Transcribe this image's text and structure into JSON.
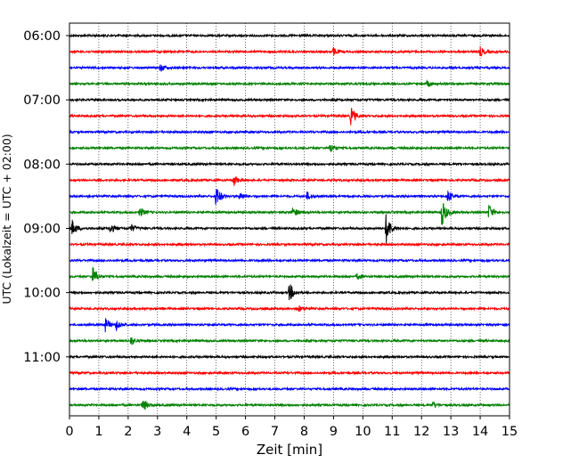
{
  "chart_data": {
    "type": "line",
    "title": "",
    "xlabel": "Zeit  [min]",
    "ylabel": "UTC (Lokalzeit = UTC + 02:00)",
    "xlim": [
      0,
      15
    ],
    "x_ticks": [
      0,
      1,
      2,
      3,
      4,
      5,
      6,
      7,
      8,
      9,
      10,
      11,
      12,
      13,
      14,
      15
    ],
    "x_tick_labels": [
      "0",
      "1",
      "2",
      "3",
      "4",
      "5",
      "6",
      "7",
      "8",
      "9",
      "10",
      "11",
      "12",
      "13",
      "14",
      "15"
    ],
    "y_tick_labels": [
      "06:00",
      "07:00",
      "08:00",
      "09:00",
      "10:00",
      "11:00"
    ],
    "y_tick_rows": [
      0,
      4,
      8,
      12,
      16,
      20
    ],
    "row_interval_minutes": 15,
    "trace_colors": [
      "#000000",
      "#ff0000",
      "#0000ff",
      "#008000"
    ],
    "grid": "vertical dotted lines at each minute",
    "series": [
      {
        "start": "06:00",
        "events": []
      },
      {
        "start": "06:15",
        "events": [
          {
            "t": 9.0,
            "amp": 0.25
          },
          {
            "t": 14.0,
            "amp": 0.3
          }
        ]
      },
      {
        "start": "06:30",
        "events": [
          {
            "t": 3.1,
            "amp": 0.25
          }
        ]
      },
      {
        "start": "06:45",
        "events": [
          {
            "t": 12.2,
            "amp": 0.2
          }
        ]
      },
      {
        "start": "07:00",
        "events": []
      },
      {
        "start": "07:15",
        "events": [
          {
            "t": 9.6,
            "amp": 0.6
          }
        ]
      },
      {
        "start": "07:30",
        "events": []
      },
      {
        "start": "07:45",
        "events": [
          {
            "t": 8.9,
            "amp": 0.3
          }
        ]
      },
      {
        "start": "08:00",
        "events": []
      },
      {
        "start": "08:15",
        "events": [
          {
            "t": 5.6,
            "amp": 0.35
          }
        ]
      },
      {
        "start": "08:30",
        "events": [
          {
            "t": 5.0,
            "amp": 0.7
          },
          {
            "t": 5.8,
            "amp": 0.3
          },
          {
            "t": 8.1,
            "amp": 0.25
          },
          {
            "t": 12.9,
            "amp": 0.4
          }
        ]
      },
      {
        "start": "08:45",
        "events": [
          {
            "t": 2.4,
            "amp": 0.3
          },
          {
            "t": 7.6,
            "amp": 0.4
          },
          {
            "t": 12.7,
            "amp": 0.9
          },
          {
            "t": 14.3,
            "amp": 0.5
          }
        ]
      },
      {
        "start": "09:00",
        "events": [
          {
            "t": 0.1,
            "amp": 0.5
          },
          {
            "t": 1.4,
            "amp": 0.3
          },
          {
            "t": 2.1,
            "amp": 0.25
          },
          {
            "t": 10.8,
            "amp": 1.0
          }
        ]
      },
      {
        "start": "09:15",
        "events": []
      },
      {
        "start": "09:30",
        "events": []
      },
      {
        "start": "09:45",
        "events": [
          {
            "t": 0.8,
            "amp": 0.6
          },
          {
            "t": 9.8,
            "amp": 0.2
          }
        ]
      },
      {
        "start": "10:00",
        "events": [
          {
            "t": 7.5,
            "amp": 0.6
          }
        ]
      },
      {
        "start": "10:15",
        "events": [
          {
            "t": 7.8,
            "amp": 0.2
          }
        ]
      },
      {
        "start": "10:30",
        "events": [
          {
            "t": 1.2,
            "amp": 0.5
          },
          {
            "t": 1.6,
            "amp": 0.3
          }
        ]
      },
      {
        "start": "10:45",
        "events": [
          {
            "t": 2.1,
            "amp": 0.25
          }
        ]
      },
      {
        "start": "11:00",
        "events": []
      },
      {
        "start": "11:15",
        "events": []
      },
      {
        "start": "11:30",
        "events": []
      },
      {
        "start": "11:45",
        "events": [
          {
            "t": 2.5,
            "amp": 0.45
          },
          {
            "t": 12.4,
            "amp": 0.2
          }
        ]
      }
    ]
  }
}
